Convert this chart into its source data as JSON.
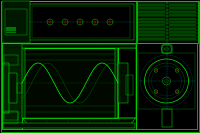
{
  "bg_color": "#000000",
  "line_color": "#00ee00",
  "dim_color": "#007700",
  "bright_color": "#00ff00",
  "red_color": "#cc2200",
  "cyan_color": "#00aaaa",
  "dot_color": "#550000",
  "fig_width": 2.0,
  "fig_height": 1.33,
  "dpi": 100
}
